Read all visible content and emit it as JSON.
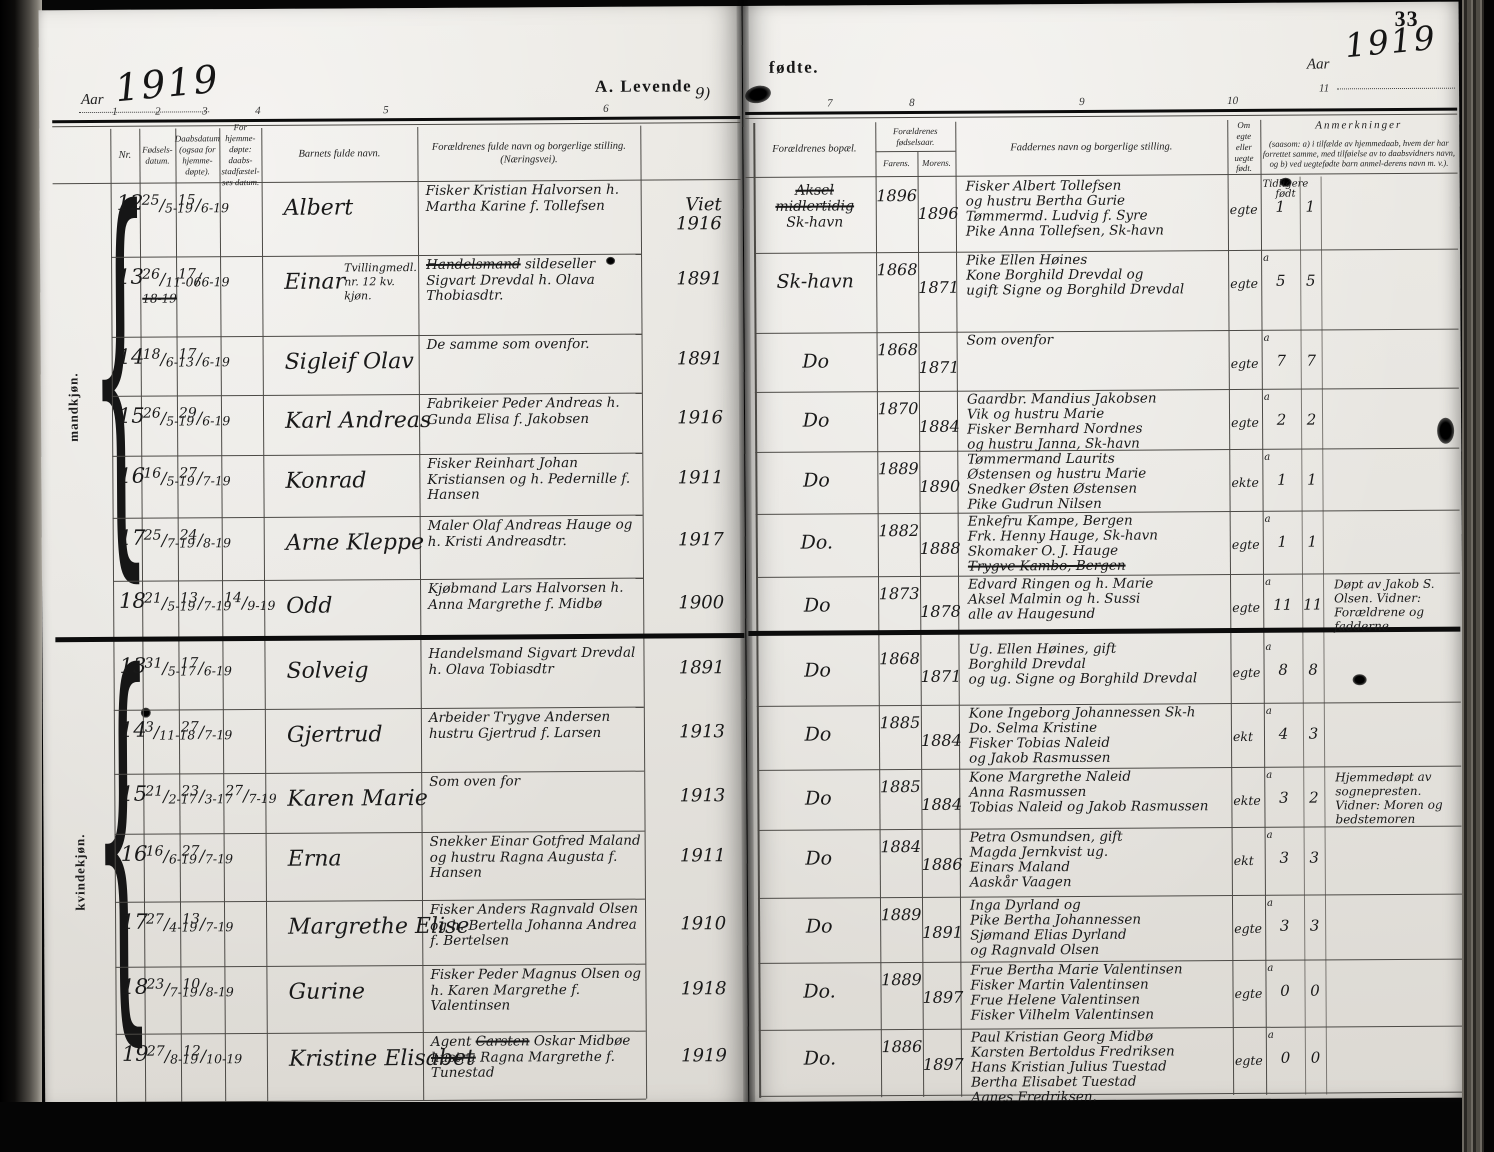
{
  "page_number": "33",
  "aar_label": "Aar",
  "year_left": "1919",
  "year_right": "1919",
  "title_left": "A. Levende",
  "title_right": "fødte.",
  "gutter_mark": "9)",
  "col_numbers_left": [
    "1",
    "2",
    "3",
    "4",
    "5",
    "6"
  ],
  "col_numbers_right": [
    "7",
    "8",
    "9",
    "10",
    "11"
  ],
  "headers": {
    "nr": "Nr.",
    "born": "Fødsels-datum.",
    "bapt": "Daabsdatum (ogsaa for hjemme-døpte).",
    "conf": "For hjemme-døpte: daabs-stadfæstel-ses datum.",
    "name": "Barnets fulde navn.",
    "parents": "Forældrenes fulde navn og borgerlige stilling. (Næringsvei).",
    "bopel": "Forældrenes bopæl.",
    "byear": "Forældrenes fødselsaar.",
    "father": "Farens.",
    "mother": "Morens.",
    "faddere": "Faddernes navn og borgerlige stilling.",
    "egte": "Om egte eller uegte født.",
    "anm_title": "Anmerkninger",
    "anm_body": "(saasom: a) i tilfælde av hjemmedaab, hvem der har forrettet samme, med tilføielse av to daabsvidners navn, og b) ved uegtefødte barn anmel-derens navn m. v.)."
  },
  "margin_labels": {
    "top": "mandkjøn.",
    "bottom": "kvindekjøn."
  },
  "sections": [
    {
      "label": "mandkjøn.",
      "rows": [
        {
          "nr": "12",
          "born": "25/5-19",
          "born_extra": "",
          "bapt": "15/6-19",
          "conf": "",
          "name": "Albert",
          "name_note": "",
          "parents": "Fisker Kristian Halvorsen h. Martha Karine f. Tollefsen",
          "viet": "Viet|1916",
          "bopel": [
            "~Aksel~",
            "~midlertidig~",
            "Sk-havn"
          ],
          "far": "1896",
          "mor": "1896",
          "faddere": [
            "Fisker Albert Tollefsen",
            "og hustru Bertha Gurie",
            "Tømmermd. Ludvig f. Syre",
            "Pike Anna Tollefsen, Sk-havn"
          ],
          "egte": "egte",
          "mark": "Tidligere født",
          "c1": "1",
          "c2": "1",
          "note": ""
        },
        {
          "nr": "13",
          "born": "26/11-06",
          "born_extra": "~18-19~",
          "bapt": "17/6-19",
          "conf": "",
          "name": "Einar",
          "name_note": "Tvillingmedl. nr. 12 kv. kjøn.",
          "parents": "~Handelsmand~ sildeseller Sigvart Drevdal h. Olava Thobiasdtr.",
          "viet": "1891",
          "bopel": [
            "Sk-havn"
          ],
          "far": "1868",
          "mor": "1871",
          "faddere": [
            "Pike Ellen Høines",
            "Kone Borghild Drevdal og",
            "ugift Signe og Borghild Drevdal"
          ],
          "egte": "egte",
          "mark": "a",
          "c1": "5",
          "c2": "5",
          "note": ""
        },
        {
          "nr": "14",
          "born": "18/6-13",
          "born_extra": "",
          "bapt": "17/6-19",
          "conf": "",
          "name": "Sigleif Olav",
          "name_note": "",
          "parents": "De samme som ovenfor.",
          "viet": "1891",
          "bopel": [
            "Do"
          ],
          "far": "1868",
          "mor": "1871",
          "faddere": [
            "Som ovenfor"
          ],
          "egte": "egte",
          "mark": "a",
          "c1": "7",
          "c2": "7",
          "note": ""
        },
        {
          "nr": "15",
          "born": "26/5-19",
          "born_extra": "",
          "bapt": "29/6-19",
          "conf": "",
          "name": "Karl Andreas",
          "name_note": "",
          "parents": "Fabrikeier Peder Andreas h. Gunda Elisa f. Jakobsen",
          "viet": "1916",
          "bopel": [
            "Do"
          ],
          "far": "1870",
          "mor": "1884",
          "faddere": [
            "Gaardbr. Mandius Jakobsen",
            "Vik og hustru Marie",
            "Fisker Bernhard Nordnes",
            "og hustru Janna, Sk-havn"
          ],
          "egte": "egte",
          "mark": "a",
          "c1": "2",
          "c2": "2",
          "note": ""
        },
        {
          "nr": "16",
          "born": "16/5-19",
          "born_extra": "",
          "bapt": "27/7-19",
          "conf": "",
          "name": "Konrad",
          "name_note": "",
          "parents": "Fisker Reinhart Johan Kristiansen og h. Pedernille f. Hansen",
          "viet": "1911",
          "bopel": [
            "Do"
          ],
          "far": "1889",
          "mor": "1890",
          "faddere": [
            "Tømmermand Laurits",
            "Østensen og hustru Marie",
            "Snedker Østen Østensen",
            "Pike Gudrun Nilsen"
          ],
          "egte": "ekte",
          "mark": "a",
          "c1": "1",
          "c2": "1",
          "note": ""
        },
        {
          "nr": "17",
          "born": "25/7-19",
          "born_extra": "",
          "bapt": "24/8-19",
          "conf": "",
          "name": "Arne Kleppe",
          "name_note": "",
          "parents": "Maler Olaf Andreas Hauge og h. Kristi Andreasdtr.",
          "viet": "1917",
          "bopel": [
            "Do."
          ],
          "far": "1882",
          "mor": "1888",
          "faddere": [
            "Enkefru Kampe, Bergen",
            "Frk. Henny Hauge, Sk-havn",
            "Skomaker O. J. Hauge",
            "~Trygve Kambo, Bergen~"
          ],
          "egte": "egte",
          "mark": "a",
          "c1": "1",
          "c2": "1",
          "note": ""
        },
        {
          "nr": "18",
          "born": "21/5-19",
          "born_extra": "",
          "bapt": "13/7-19",
          "conf": "14/9-19",
          "name": "Odd",
          "name_note": "",
          "parents": "Kjøbmand Lars Halvorsen h. Anna Margrethe f. Midbø",
          "viet": "1900",
          "bopel": [
            "Do"
          ],
          "far": "1873",
          "mor": "1878",
          "faddere": [
            "Edvard Ringen og h. Marie",
            "Aksel Malmin og h. Sussi",
            "alle av Haugesund"
          ],
          "egte": "egte",
          "mark": "a",
          "c1": "11",
          "c2": "11",
          "note": "Døpt av Jakob S. Olsen. Vidner: Forældrene og fadderne"
        }
      ]
    },
    {
      "label": "kvindekjøn.",
      "rows": [
        {
          "nr": "13",
          "born": "31/5-17",
          "born_extra": "",
          "bapt": "17/6-19",
          "conf": "",
          "name": "Solveig",
          "name_note": "",
          "parents": "Handelsmand Sigvart Drevdal h. Olava Tobiasdtr",
          "viet": "1891",
          "bopel": [
            "Do"
          ],
          "far": "1868",
          "mor": "1871",
          "faddere": [
            "Ug. Ellen Høines, gift",
            "Borghild Drevdal",
            "og ug. Signe og Borghild Drevdal"
          ],
          "egte": "egte",
          "mark": "a",
          "c1": "8",
          "c2": "8",
          "note": ""
        },
        {
          "nr": "14",
          "born": "3/11-18",
          "born_extra": "",
          "bapt": "27/7-19",
          "conf": "",
          "name": "Gjertrud",
          "name_note": "",
          "parents": "Arbeider Trygve Andersen hustru Gjertrud f. Larsen",
          "viet": "1913",
          "bopel": [
            "Do"
          ],
          "far": "1885",
          "mor": "1884",
          "faddere": [
            "Kone Ingeborg Johannessen Sk-h",
            "Do. Selma Kristine",
            "Fisker Tobias Naleid",
            "og Jakob Rasmussen"
          ],
          "egte": "ekt",
          "mark": "a",
          "c1": "4",
          "c2": "3",
          "note": ""
        },
        {
          "nr": "15",
          "born": "21/2-17",
          "born_extra": "",
          "bapt": "23/3-17",
          "conf": "27/7-19",
          "name": "Karen Marie",
          "name_note": "",
          "parents": "Som oven for",
          "viet": "1913",
          "bopel": [
            "Do"
          ],
          "far": "1885",
          "mor": "1884",
          "faddere": [
            "Kone Margrethe Naleid",
            "Anna Rasmussen",
            "Tobias Naleid og Jakob Rasmussen"
          ],
          "egte": "ekte",
          "mark": "a",
          "c1": "3",
          "c2": "2",
          "note": "Hjemmedøpt av sognepresten. Vidner: Moren og bedstemoren"
        },
        {
          "nr": "16",
          "born": "16/6-19",
          "born_extra": "",
          "bapt": "27/7-19",
          "conf": "",
          "name": "Erna",
          "name_note": "",
          "parents": "Snekker Einar Gotfred Maland og hustru Ragna Augusta f. Hansen",
          "viet": "1911",
          "bopel": [
            "Do"
          ],
          "far": "1884",
          "mor": "1886",
          "faddere": [
            "Petra Osmundsen, gift",
            "Magda Jernkvist ug.",
            "Einars Maland",
            "Aaskår Vaagen"
          ],
          "egte": "ekt",
          "mark": "a",
          "c1": "3",
          "c2": "3",
          "note": ""
        },
        {
          "nr": "17",
          "born": "27/4-19",
          "born_extra": "",
          "bapt": "13/7-19",
          "conf": "",
          "name": "Margrethe Elise",
          "name_note": "",
          "parents": "Fisker Anders Ragnvald Olsen og h. Bertella Johanna Andrea f. Bertelsen",
          "viet": "1910",
          "bopel": [
            "Do"
          ],
          "far": "1889",
          "mor": "1891",
          "faddere": [
            "Inga Dyrland og",
            "Pike Bertha Johannessen",
            "Sjømand Elias Dyrland",
            "og Ragnvald Olsen"
          ],
          "egte": "egte",
          "mark": "a",
          "c1": "3",
          "c2": "3",
          "note": ""
        },
        {
          "nr": "18",
          "born": "23/7-19",
          "born_extra": "",
          "bapt": "10/8-19",
          "conf": "",
          "name": "Gurine",
          "name_note": "",
          "parents": "Fisker Peder Magnus Olsen og h. Karen Margrethe f. Valentinsen",
          "viet": "1918",
          "bopel": [
            "Do."
          ],
          "far": "1889",
          "mor": "1897",
          "faddere": [
            "Frue Bertha Marie Valentinsen",
            "Fisker Martin Valentinsen",
            "Frue Helene Valentinsen",
            "Fisker Vilhelm Valentinsen"
          ],
          "egte": "egte",
          "mark": "a",
          "c1": "0",
          "c2": "0",
          "note": ""
        },
        {
          "nr": "19",
          "born": "27/8-19",
          "born_extra": "",
          "bapt": "12/10-19",
          "conf": "",
          "name": "Kristine Elisabet",
          "name_note": "",
          "parents": "Agent ~Carsten~ Oskar Midbøe ~hustru~ Ragna Margrethe f. Tunestad",
          "viet": "1919",
          "bopel": [
            "Do."
          ],
          "far": "1886",
          "mor": "1897",
          "faddere": [
            "Paul Kristian Georg Midbø",
            "Karsten Bertoldus Fredriksen",
            "Hans Kristian Julius Tuestad",
            "Bertha Elisabet Tuestad",
            "Agnes Fredriksen."
          ],
          "egte": "egte",
          "mark": "a",
          "c1": "0",
          "c2": "0",
          "note": ""
        }
      ]
    }
  ]
}
